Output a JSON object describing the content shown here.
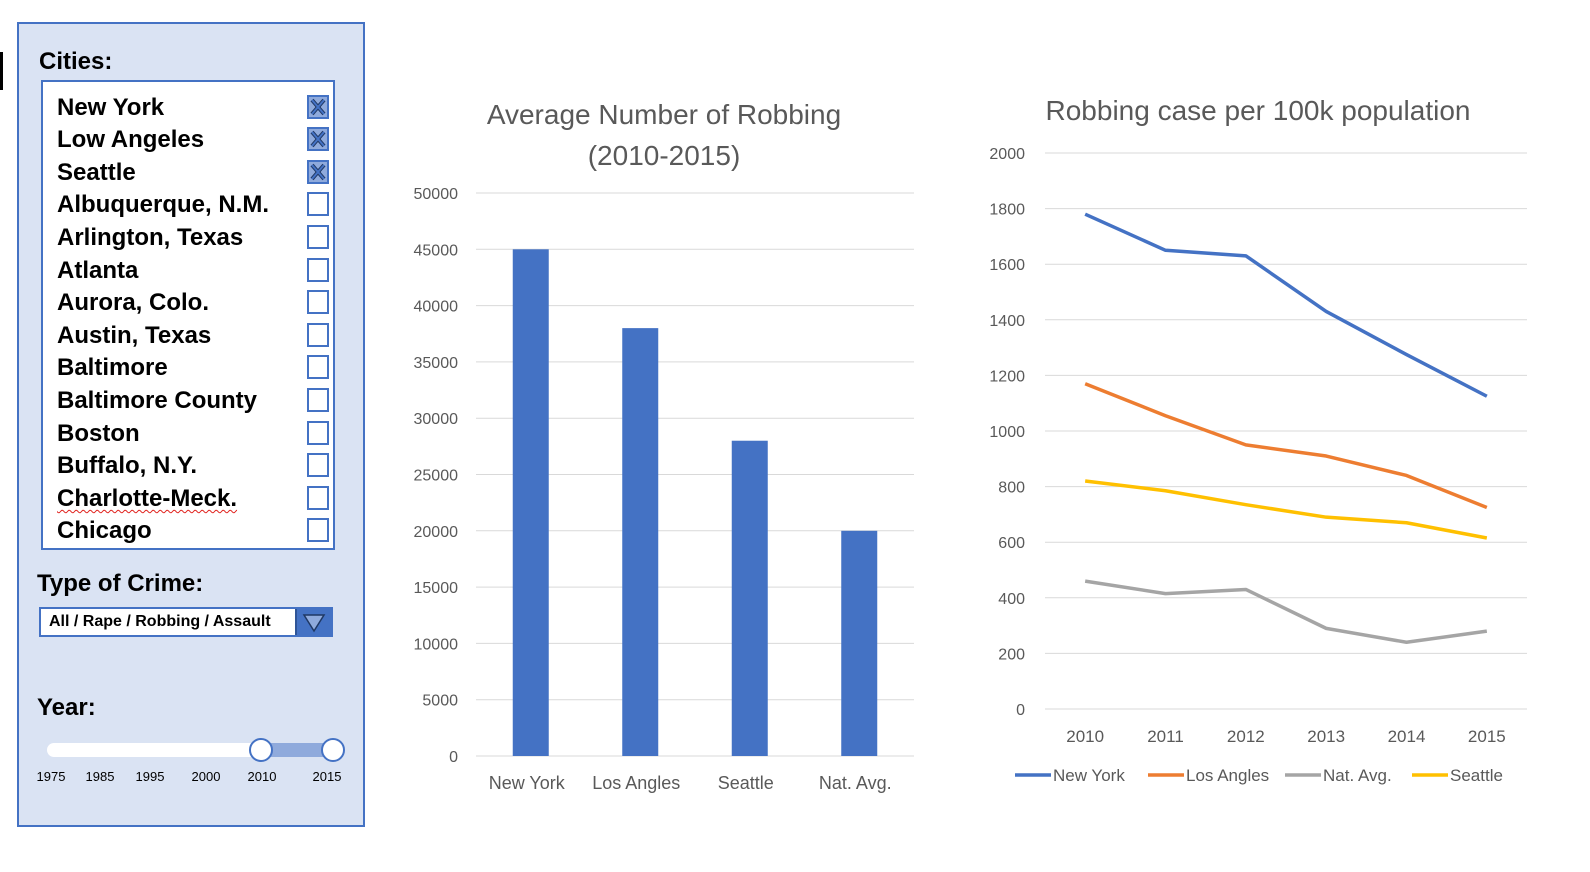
{
  "filters": {
    "cities_heading": "Cities:",
    "cities": [
      {
        "label": "New York",
        "checked": true
      },
      {
        "label": "Low Angeles",
        "checked": true
      },
      {
        "label": "Seattle",
        "checked": true
      },
      {
        "label": "Albuquerque, N.M.",
        "checked": false
      },
      {
        "label": "Arlington, Texas",
        "checked": false
      },
      {
        "label": "Atlanta",
        "checked": false
      },
      {
        "label": "Aurora, Colo.",
        "checked": false
      },
      {
        "label": "Austin, Texas",
        "checked": false
      },
      {
        "label": "Baltimore",
        "checked": false
      },
      {
        "label": "Baltimore County",
        "checked": false
      },
      {
        "label": "Boston",
        "checked": false
      },
      {
        "label": "Buffalo, N.Y.",
        "checked": false
      },
      {
        "label": "Charlotte-Meck.",
        "checked": false
      },
      {
        "label": "Chicago",
        "checked": false
      }
    ],
    "crime_heading": "Type of Crime:",
    "crime_value": "All / Rape / Robbing / Assault",
    "year_heading": "Year:",
    "year_ticks": [
      "1975",
      "1985",
      "1995",
      "2000",
      "2010",
      "2015"
    ],
    "year_range": [
      "2010",
      "2015"
    ]
  },
  "colors": {
    "accent": "#4472c4",
    "panel_bg": "#dae3f3",
    "new_york": "#4472c4",
    "los_angeles": "#ed7d31",
    "nat_avg": "#a5a5a5",
    "seattle": "#ffc000"
  },
  "chart_data": [
    {
      "type": "bar",
      "title": "Average Number of Robbing\n(2010-2015)",
      "title_lines": [
        "Average Number of Robbing",
        "(2010-2015)"
      ],
      "categories": [
        "New York",
        "Los Angles",
        "Seattle",
        "Nat. Avg."
      ],
      "values": [
        45000,
        38000,
        28000,
        20000
      ],
      "ylim": [
        0,
        50000
      ],
      "yticks": [
        0,
        5000,
        10000,
        15000,
        20000,
        25000,
        30000,
        35000,
        40000,
        45000,
        50000
      ],
      "grid": true,
      "color": "#4472c4"
    },
    {
      "type": "line",
      "title": "Robbing case per 100k population",
      "x": [
        "2010",
        "2011",
        "2012",
        "2013",
        "2014",
        "2015"
      ],
      "ylim": [
        0,
        2000
      ],
      "yticks": [
        0,
        200,
        400,
        600,
        800,
        1000,
        1200,
        1400,
        1600,
        1800,
        2000
      ],
      "grid": true,
      "legend": "bottom",
      "series": [
        {
          "name": "New York",
          "color": "#4472c4",
          "values": [
            1780,
            1650,
            1630,
            1430,
            1275,
            1125
          ]
        },
        {
          "name": "Los Angles",
          "color": "#ed7d31",
          "values": [
            1170,
            1055,
            950,
            910,
            840,
            725
          ]
        },
        {
          "name": "Nat. Avg.",
          "color": "#a5a5a5",
          "values": [
            460,
            415,
            430,
            290,
            240,
            280
          ]
        },
        {
          "name": "Seattle",
          "color": "#ffc000",
          "values": [
            820,
            785,
            735,
            690,
            670,
            615
          ]
        }
      ]
    }
  ]
}
